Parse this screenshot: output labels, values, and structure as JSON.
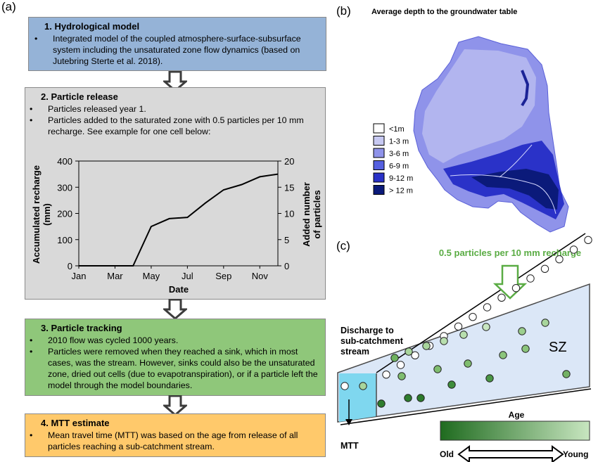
{
  "panel_labels": {
    "a": "(a)",
    "b": "(b)",
    "c": "(c)"
  },
  "colors": {
    "hydro_box": "#95b3d7",
    "particle_box": "#d9d9d9",
    "tracking_box": "#8fc77a",
    "mtt_box": "#ffc96b",
    "light_blue": "#dbe7f7",
    "cyan": "#7fd7ef"
  },
  "box1": {
    "title": "1. Hydrological model",
    "bullets": [
      "Integrated model of the coupled atmosphere-surface-subsurface system including the unsaturated zone flow dynamics (based on Jutebring Sterte et al. 2018)."
    ]
  },
  "box2": {
    "title": "2. Particle release",
    "bullets": [
      "Particles released year 1.",
      "Particles added to the saturated zone with 0.5 particles per 10 mm recharge. See example for one cell below:"
    ]
  },
  "box3": {
    "title": "3. Particle tracking",
    "bullets": [
      "2010 flow was cycled 1000 years.",
      "Particles were removed when they reached a sink, which in most cases, was the stream. However, sinks could also be the unsaturated zone, dried out cells (due to evapotranspiration), or if a particle left the model through the model boundaries."
    ]
  },
  "box4": {
    "title": "4. MTT estimate",
    "bullets": [
      "Mean travel time (MTT) was based on the age from release of all particles reaching a sub-catchment stream."
    ]
  },
  "bullet_char": "•",
  "chart_data": {
    "type": "line",
    "x": [
      "Jan",
      "Feb",
      "Mar",
      "Apr",
      "May",
      "Jun",
      "Jul",
      "Aug",
      "Sep",
      "Oct",
      "Nov",
      "Dec"
    ],
    "series": [
      {
        "values": [
          0,
          0,
          0,
          0,
          150,
          180,
          185,
          240,
          290,
          310,
          340,
          350
        ]
      }
    ],
    "xticks": [
      "Jan",
      "Mar",
      "May",
      "Jul",
      "Sep",
      "Nov"
    ],
    "xlabel": "Date",
    "ylabel": "Accumulated recharge (mm)",
    "ylabel_lines": [
      "Accumulated recharge",
      "(mm)"
    ],
    "ylim": [
      0,
      400
    ],
    "yticks": [
      "0",
      "100",
      "200",
      "300",
      "400"
    ],
    "y2label": "Added number of particles",
    "y2label_lines": [
      "Added number",
      "of particles"
    ],
    "y2lim": [
      0,
      20
    ],
    "y2ticks": [
      "0",
      "5",
      "10",
      "15",
      "20"
    ],
    "grid": false
  },
  "map": {
    "title": "Average depth to the groundwater table",
    "legend": [
      {
        "label": "<1m",
        "color": "#ffffff"
      },
      {
        "label": "1-3 m",
        "color": "#c7c9f2"
      },
      {
        "label": "3-6 m",
        "color": "#8f93ea"
      },
      {
        "label": "6-9 m",
        "color": "#5560e0"
      },
      {
        "label": "9-12 m",
        "color": "#2a32c8"
      },
      {
        "label": "> 12 m",
        "color": "#0b1a7a"
      }
    ]
  },
  "schematic": {
    "recharge_label": "0.5 particles per 10 mm recharge",
    "recharge_color": "#5aac44",
    "discharge_label": [
      "Discharge to",
      "sub-catchment",
      "stream"
    ],
    "sz_label": "SZ",
    "mtt_label": "MTT",
    "age_label": "Age",
    "old_label": "Old",
    "young_label": "Young",
    "gradient": [
      "#1f6b1f",
      "#c8e6c0"
    ]
  }
}
